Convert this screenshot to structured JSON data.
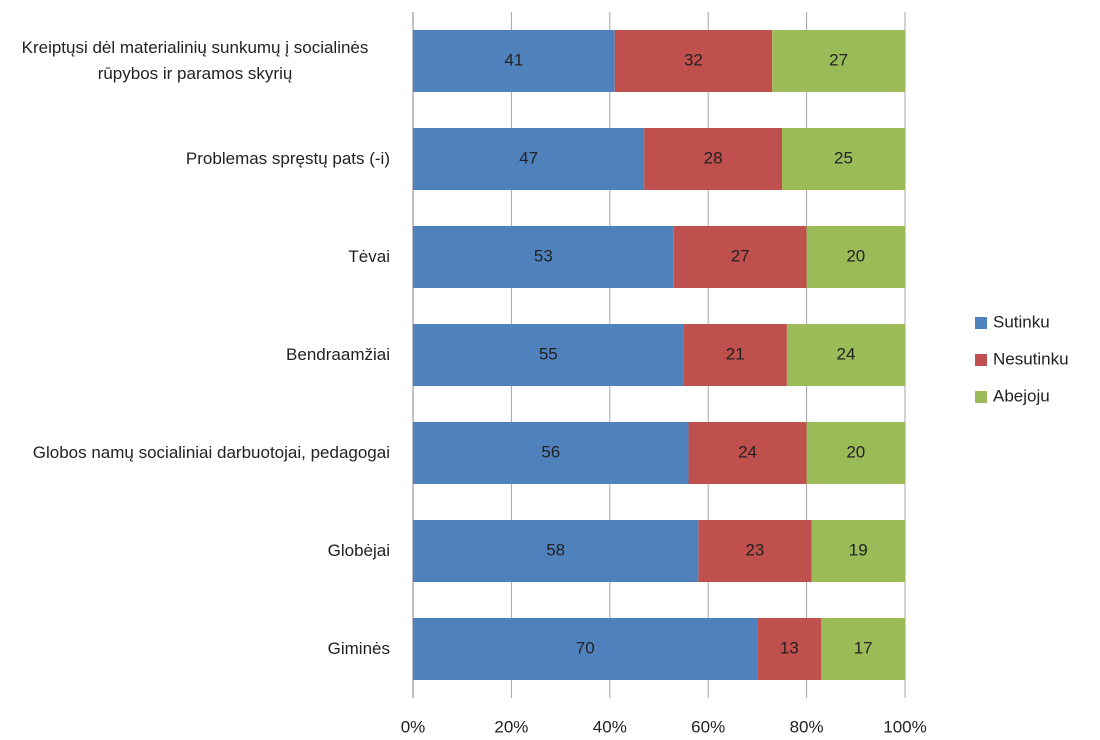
{
  "chart_data": {
    "type": "stacked_barh",
    "categories": [
      "Kreiptųsi dėl materialinių sunkumų į socialinės rūpybos ir paramos skyrių",
      "Problemas spręstų pats (-i)",
      "Tėvai",
      "Bendraamžiai",
      "Globos namų socialiniai darbuotojai, pedagogai",
      "Globėjai",
      "Giminės"
    ],
    "series": [
      {
        "name": "Sutinku",
        "color": "#4f81bd",
        "values": [
          41,
          47,
          53,
          55,
          56,
          58,
          70
        ]
      },
      {
        "name": "Nesutinku",
        "color": "#c0504d",
        "values": [
          32,
          28,
          27,
          21,
          24,
          23,
          13
        ]
      },
      {
        "name": "Abejoju",
        "color": "#9bbb59",
        "values": [
          27,
          25,
          20,
          24,
          20,
          19,
          17
        ]
      }
    ],
    "xlim": [
      0,
      100
    ],
    "xticks": [
      {
        "value": 0,
        "label": "0%"
      },
      {
        "value": 20,
        "label": "20%"
      },
      {
        "value": 40,
        "label": "40%"
      },
      {
        "value": 60,
        "label": "60%"
      },
      {
        "value": 80,
        "label": "80%"
      },
      {
        "value": 100,
        "label": "100%"
      }
    ],
    "grid": true,
    "legend": "right"
  }
}
